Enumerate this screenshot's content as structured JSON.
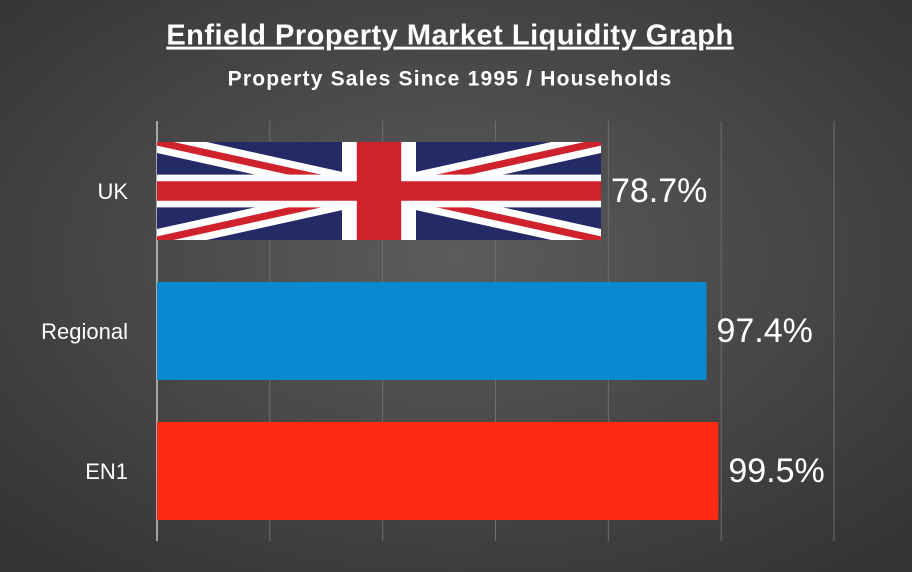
{
  "chart_data": {
    "type": "bar",
    "orientation": "horizontal",
    "title": "Enfield Property Market Liquidity Graph",
    "subtitle": "Property Sales Since 1995 / Households",
    "categories": [
      "UK",
      "Regional",
      "EN1"
    ],
    "values": [
      78.7,
      97.4,
      99.5
    ],
    "value_labels": [
      "78.7%",
      "97.4%",
      "99.5%"
    ],
    "colors": [
      "#232a66",
      "#0a88d0",
      "#ff2a14"
    ],
    "xlim": [
      0,
      120
    ],
    "xticks": [
      0,
      20,
      40,
      60,
      80,
      100,
      120
    ],
    "grid": true
  }
}
